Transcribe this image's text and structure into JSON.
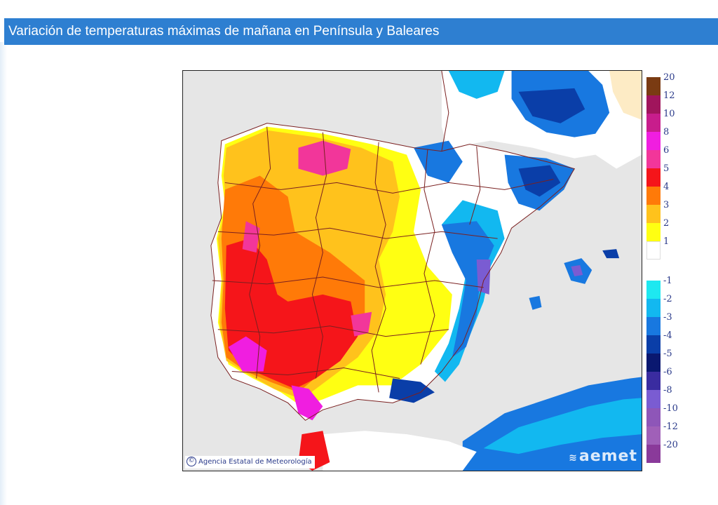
{
  "header": {
    "title": "Variación de temperaturas máximas de mañana en Península y Baleares"
  },
  "map": {
    "credit": "Agencia Estatal de Meteorología",
    "credit_icon": "copyright-icon",
    "logo": "aemet",
    "logo_icon": "aemet-logo-icon"
  },
  "legend": {
    "positive": [
      {
        "label": "20",
        "color": "#7a3b12"
      },
      {
        "label": "12",
        "color": "#a0155c"
      },
      {
        "label": "10",
        "color": "#c81d8c"
      },
      {
        "label": "8",
        "color": "#f01ee0"
      },
      {
        "label": "6",
        "color": "#f2369a"
      },
      {
        "label": "5",
        "color": "#f5151a"
      },
      {
        "label": "4",
        "color": "#ff7a08"
      },
      {
        "label": "3",
        "color": "#ffc21c"
      },
      {
        "label": "2",
        "color": "#ffff12"
      },
      {
        "label": "1",
        "color": "#ffffff"
      }
    ],
    "negative": [
      {
        "label": "-1",
        "color": "#1ee8f0"
      },
      {
        "label": "-2",
        "color": "#12b8f0"
      },
      {
        "label": "-3",
        "color": "#1878e0"
      },
      {
        "label": "-4",
        "color": "#0a3ea8"
      },
      {
        "label": "-5",
        "color": "#0a1870"
      },
      {
        "label": "-6",
        "color": "#3a2ca0"
      },
      {
        "label": "-8",
        "color": "#7a5cd2"
      },
      {
        "label": "-10",
        "color": "#8e56b8"
      },
      {
        "label": "-12",
        "color": "#a060b8"
      },
      {
        "label": "-20",
        "color": "#8a3a9a"
      }
    ]
  },
  "colors": {
    "header_bg": "#2e7fd1",
    "sea": "#e6e6e6",
    "land_neutral": "#ffffff",
    "border_lines": "#7a2020"
  }
}
